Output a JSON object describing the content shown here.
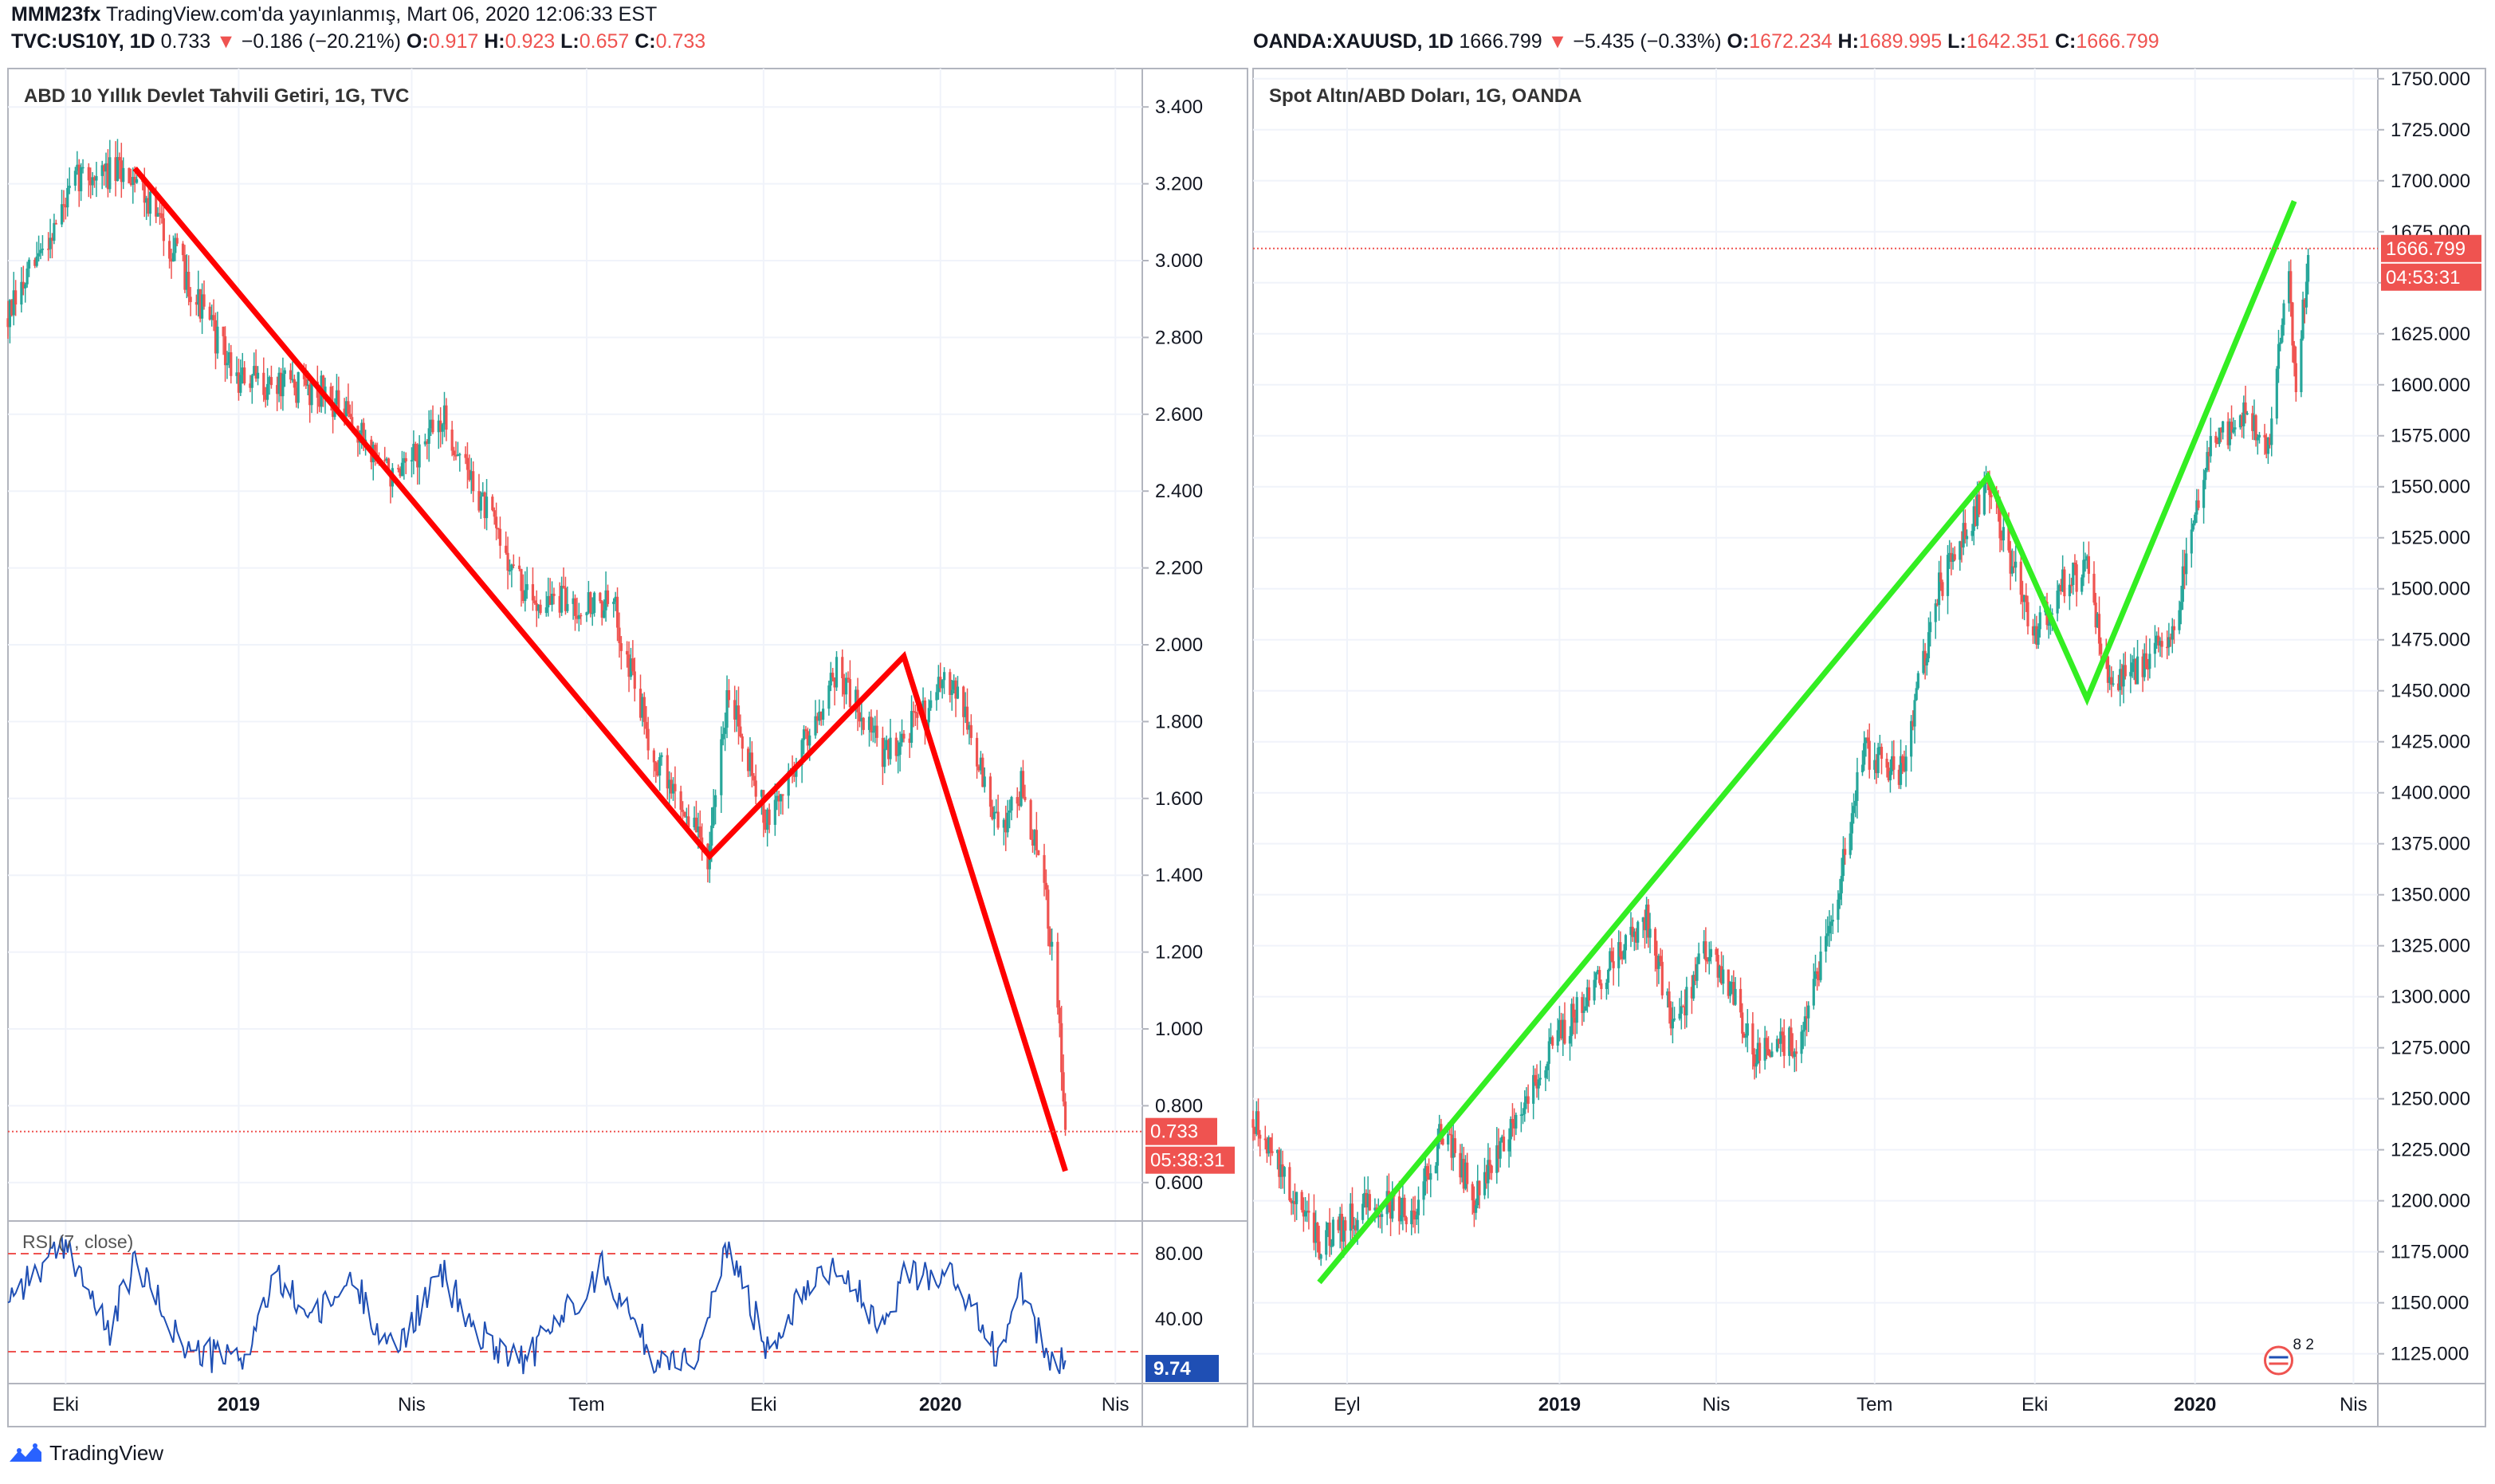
{
  "header": {
    "publisher": "MMM23fx",
    "published_on": "TradingView.com'da yayınlanmış, Mart 06, 2020 12:06:33 EST",
    "left_symbol": "TVC:US10Y, 1D",
    "left_last": "0.733",
    "left_change": "−0.186 (−20.21%)",
    "left_o": "0.917",
    "left_h": "0.923",
    "left_l": "0.657",
    "left_c": "0.733",
    "right_symbol": "OANDA:XAUUSD, 1D",
    "right_last": "1666.799",
    "right_change": "−5.435 (−0.33%)",
    "right_o": "1672.234",
    "right_h": "1689.995",
    "right_l": "1642.351",
    "right_c": "1666.799"
  },
  "footer": {
    "brand": "TradingView"
  },
  "colors": {
    "down_line": "#ff0000",
    "up_line": "#33ee22",
    "candle_up": "#26a69a",
    "candle_down": "#ef5350",
    "rsi_line": "#1f4fb4"
  },
  "chart_data": [
    {
      "type": "candlestick",
      "title": "ABD 10 Yıllık Devlet Tahvili Getiri, 1G, TVC",
      "x_ticks": [
        "Eki",
        "2019",
        "Nis",
        "Tem",
        "Eki",
        "2020",
        "Nis"
      ],
      "y_ticks": [
        "3.400",
        "3.200",
        "3.000",
        "2.800",
        "2.600",
        "2.400",
        "2.200",
        "2.000",
        "1.800",
        "1.600",
        "1.400",
        "1.200",
        "1.000",
        "0.800",
        "0.600"
      ],
      "ylim": [
        0.5,
        3.5
      ],
      "last_price_label": "0.733",
      "countdown_label": "05:38:31",
      "trend_line": {
        "color": "red",
        "points": [
          {
            "date": "2018-11-08",
            "y": 3.24
          },
          {
            "date": "2019-09-03",
            "y": 1.45
          },
          {
            "date": "2019-12-13",
            "y": 1.97
          },
          {
            "date": "2020-03-06",
            "y": 0.63
          }
        ]
      },
      "path_anchors": [
        {
          "date": "2018-09-03",
          "y": 2.85
        },
        {
          "date": "2018-10-10",
          "y": 3.22
        },
        {
          "date": "2018-11-08",
          "y": 3.23
        },
        {
          "date": "2018-12-31",
          "y": 2.69
        },
        {
          "date": "2019-02-15",
          "y": 2.66
        },
        {
          "date": "2019-03-25",
          "y": 2.42
        },
        {
          "date": "2019-04-17",
          "y": 2.59
        },
        {
          "date": "2019-05-31",
          "y": 2.12
        },
        {
          "date": "2019-07-15",
          "y": 2.1
        },
        {
          "date": "2019-08-05",
          "y": 1.71
        },
        {
          "date": "2019-09-03",
          "y": 1.45
        },
        {
          "date": "2019-09-13",
          "y": 1.9
        },
        {
          "date": "2019-10-03",
          "y": 1.53
        },
        {
          "date": "2019-11-08",
          "y": 1.94
        },
        {
          "date": "2019-12-03",
          "y": 1.71
        },
        {
          "date": "2020-01-08",
          "y": 1.92
        },
        {
          "date": "2020-01-31",
          "y": 1.51
        },
        {
          "date": "2020-02-12",
          "y": 1.63
        },
        {
          "date": "2020-02-24",
          "y": 1.37
        },
        {
          "date": "2020-03-03",
          "y": 1.0
        },
        {
          "date": "2020-03-06",
          "y": 0.73
        }
      ],
      "rsi": {
        "label": "RSI (7, close)",
        "y_ticks": [
          "80.00",
          "40.00"
        ],
        "bands": [
          80,
          20
        ],
        "value_label": "9.74",
        "points": [
          {
            "date": "2018-09-03",
            "y": 55
          },
          {
            "date": "2018-10-05",
            "y": 85
          },
          {
            "date": "2018-10-25",
            "y": 30
          },
          {
            "date": "2018-11-08",
            "y": 75
          },
          {
            "date": "2018-12-05",
            "y": 20
          },
          {
            "date": "2019-01-03",
            "y": 15
          },
          {
            "date": "2019-01-20",
            "y": 65
          },
          {
            "date": "2019-02-10",
            "y": 40
          },
          {
            "date": "2019-03-01",
            "y": 65
          },
          {
            "date": "2019-03-22",
            "y": 20
          },
          {
            "date": "2019-04-17",
            "y": 68
          },
          {
            "date": "2019-05-05",
            "y": 30
          },
          {
            "date": "2019-05-31",
            "y": 15
          },
          {
            "date": "2019-06-20",
            "y": 45
          },
          {
            "date": "2019-07-10",
            "y": 72
          },
          {
            "date": "2019-08-05",
            "y": 15
          },
          {
            "date": "2019-08-28",
            "y": 18
          },
          {
            "date": "2019-09-13",
            "y": 85
          },
          {
            "date": "2019-10-03",
            "y": 22
          },
          {
            "date": "2019-10-25",
            "y": 65
          },
          {
            "date": "2019-11-08",
            "y": 75
          },
          {
            "date": "2019-12-03",
            "y": 30
          },
          {
            "date": "2019-12-13",
            "y": 70
          },
          {
            "date": "2020-01-08",
            "y": 65
          },
          {
            "date": "2020-01-31",
            "y": 18
          },
          {
            "date": "2020-02-12",
            "y": 60
          },
          {
            "date": "2020-02-24",
            "y": 20
          },
          {
            "date": "2020-03-06",
            "y": 10
          }
        ]
      }
    },
    {
      "type": "candlestick",
      "title": "Spot Altın/ABD Doları, 1G, OANDA",
      "x_ticks": [
        "Eyl",
        "2019",
        "Nis",
        "Tem",
        "Eki",
        "2020",
        "Nis"
      ],
      "y_ticks": [
        "1750.000",
        "1725.000",
        "1700.000",
        "1675.000",
        "1650.000",
        "1625.000",
        "1600.000",
        "1575.000",
        "1550.000",
        "1525.000",
        "1500.000",
        "1475.000",
        "1450.000",
        "1425.000",
        "1400.000",
        "1375.000",
        "1350.000",
        "1325.000",
        "1300.000",
        "1275.000",
        "1250.000",
        "1225.000",
        "1200.000",
        "1175.000",
        "1150.000",
        "1125.000"
      ],
      "ylim": [
        1110,
        1755
      ],
      "last_price_label": "1666.799",
      "countdown_label": "04:53:31",
      "badge_label": "8 2",
      "trend_line": {
        "color": "green",
        "points": [
          {
            "date": "2018-08-16",
            "y": 1160
          },
          {
            "date": "2019-09-04",
            "y": 1555
          },
          {
            "date": "2019-10-31",
            "y": 1446
          },
          {
            "date": "2020-02-27",
            "y": 1690
          }
        ]
      },
      "path_anchors": [
        {
          "date": "2018-07-09",
          "y": 1240
        },
        {
          "date": "2018-08-16",
          "y": 1178
        },
        {
          "date": "2018-09-15",
          "y": 1200
        },
        {
          "date": "2018-10-10",
          "y": 1195
        },
        {
          "date": "2018-10-26",
          "y": 1235
        },
        {
          "date": "2018-11-13",
          "y": 1202
        },
        {
          "date": "2018-12-31",
          "y": 1280
        },
        {
          "date": "2019-02-20",
          "y": 1340
        },
        {
          "date": "2019-03-07",
          "y": 1285
        },
        {
          "date": "2019-03-25",
          "y": 1320
        },
        {
          "date": "2019-04-10",
          "y": 1305
        },
        {
          "date": "2019-04-23",
          "y": 1270
        },
        {
          "date": "2019-05-20",
          "y": 1280
        },
        {
          "date": "2019-06-07",
          "y": 1340
        },
        {
          "date": "2019-06-25",
          "y": 1420
        },
        {
          "date": "2019-07-16",
          "y": 1410
        },
        {
          "date": "2019-08-07",
          "y": 1500
        },
        {
          "date": "2019-09-04",
          "y": 1550
        },
        {
          "date": "2019-10-01",
          "y": 1475
        },
        {
          "date": "2019-10-14",
          "y": 1500
        },
        {
          "date": "2019-10-31",
          "y": 1510
        },
        {
          "date": "2019-11-12",
          "y": 1455
        },
        {
          "date": "2019-12-03",
          "y": 1463
        },
        {
          "date": "2019-12-20",
          "y": 1480
        },
        {
          "date": "2020-01-08",
          "y": 1570
        },
        {
          "date": "2020-01-31",
          "y": 1585
        },
        {
          "date": "2020-02-12",
          "y": 1568
        },
        {
          "date": "2020-02-24",
          "y": 1660
        },
        {
          "date": "2020-02-28",
          "y": 1590
        },
        {
          "date": "2020-03-06",
          "y": 1667
        }
      ]
    }
  ]
}
